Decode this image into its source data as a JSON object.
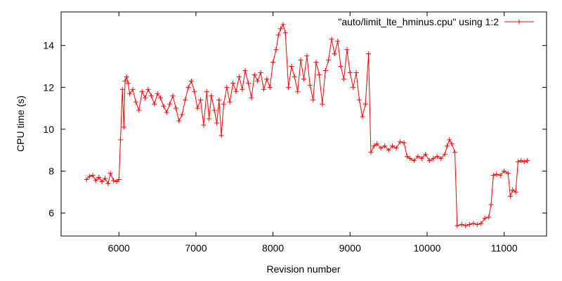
{
  "chart_data": {
    "type": "line",
    "title": "",
    "xlabel": "Revision number",
    "ylabel": "CPU time (s)",
    "xlim": [
      5250,
      11550
    ],
    "ylim": [
      4.9,
      15.6
    ],
    "xticks": [
      6000,
      7000,
      8000,
      9000,
      10000,
      11000
    ],
    "yticks": [
      6,
      8,
      10,
      12,
      14
    ],
    "legend_position": "top-right",
    "point_marker": "plus",
    "color": "#ff0000",
    "series": [
      {
        "name": "\"auto/limit_lte_hminus.cpu\" using 1:2",
        "points": [
          [
            5580,
            7.6
          ],
          [
            5620,
            7.75
          ],
          [
            5660,
            7.8
          ],
          [
            5700,
            7.55
          ],
          [
            5740,
            7.7
          ],
          [
            5780,
            7.5
          ],
          [
            5820,
            7.65
          ],
          [
            5860,
            7.4
          ],
          [
            5890,
            7.9
          ],
          [
            5930,
            7.55
          ],
          [
            5970,
            7.5
          ],
          [
            6000,
            7.6
          ],
          [
            6020,
            9.5
          ],
          [
            6045,
            11.9
          ],
          [
            6065,
            10.1
          ],
          [
            6080,
            12.3
          ],
          [
            6100,
            12.5
          ],
          [
            6120,
            12.2
          ],
          [
            6140,
            11.7
          ],
          [
            6180,
            11.9
          ],
          [
            6220,
            11.3
          ],
          [
            6260,
            10.9
          ],
          [
            6300,
            11.8
          ],
          [
            6340,
            11.5
          ],
          [
            6380,
            11.9
          ],
          [
            6420,
            11.6
          ],
          [
            6460,
            11.2
          ],
          [
            6500,
            11.7
          ],
          [
            6540,
            11.5
          ],
          [
            6580,
            11.1
          ],
          [
            6620,
            10.8
          ],
          [
            6660,
            11.2
          ],
          [
            6700,
            11.6
          ],
          [
            6740,
            11.0
          ],
          [
            6780,
            10.4
          ],
          [
            6820,
            10.7
          ],
          [
            6860,
            11.4
          ],
          [
            6900,
            12.0
          ],
          [
            6940,
            12.3
          ],
          [
            6980,
            11.8
          ],
          [
            7020,
            11.0
          ],
          [
            7060,
            11.4
          ],
          [
            7100,
            10.2
          ],
          [
            7140,
            11.8
          ],
          [
            7170,
            10.5
          ],
          [
            7200,
            11.6
          ],
          [
            7240,
            10.9
          ],
          [
            7270,
            10.3
          ],
          [
            7300,
            11.4
          ],
          [
            7330,
            9.7
          ],
          [
            7360,
            11.2
          ],
          [
            7400,
            12.0
          ],
          [
            7440,
            11.3
          ],
          [
            7480,
            12.2
          ],
          [
            7520,
            11.8
          ],
          [
            7560,
            12.5
          ],
          [
            7600,
            11.9
          ],
          [
            7640,
            12.8
          ],
          [
            7680,
            12.2
          ],
          [
            7720,
            11.5
          ],
          [
            7760,
            12.6
          ],
          [
            7800,
            12.3
          ],
          [
            7840,
            12.7
          ],
          [
            7880,
            11.9
          ],
          [
            7920,
            12.4
          ],
          [
            7960,
            12.0
          ],
          [
            8000,
            13.2
          ],
          [
            8040,
            13.8
          ],
          [
            8070,
            14.5
          ],
          [
            8100,
            14.8
          ],
          [
            8130,
            15.0
          ],
          [
            8160,
            14.6
          ],
          [
            8200,
            12.0
          ],
          [
            8240,
            13.0
          ],
          [
            8280,
            12.5
          ],
          [
            8320,
            11.8
          ],
          [
            8360,
            13.3
          ],
          [
            8400,
            12.4
          ],
          [
            8440,
            13.5
          ],
          [
            8480,
            12.1
          ],
          [
            8520,
            11.4
          ],
          [
            8560,
            13.2
          ],
          [
            8600,
            12.6
          ],
          [
            8640,
            11.2
          ],
          [
            8680,
            12.8
          ],
          [
            8720,
            13.3
          ],
          [
            8760,
            14.3
          ],
          [
            8800,
            13.6
          ],
          [
            8840,
            14.2
          ],
          [
            8880,
            13.0
          ],
          [
            8920,
            12.4
          ],
          [
            8960,
            13.8
          ],
          [
            9000,
            12.7
          ],
          [
            9040,
            12.0
          ],
          [
            9080,
            12.7
          ],
          [
            9120,
            11.4
          ],
          [
            9160,
            10.6
          ],
          [
            9200,
            11.2
          ],
          [
            9240,
            13.6
          ],
          [
            9270,
            8.9
          ],
          [
            9310,
            9.2
          ],
          [
            9350,
            9.3
          ],
          [
            9400,
            9.1
          ],
          [
            9450,
            9.2
          ],
          [
            9500,
            9.0
          ],
          [
            9550,
            9.2
          ],
          [
            9600,
            9.1
          ],
          [
            9650,
            9.4
          ],
          [
            9700,
            9.35
          ],
          [
            9740,
            8.7
          ],
          [
            9780,
            8.6
          ],
          [
            9830,
            8.5
          ],
          [
            9880,
            8.7
          ],
          [
            9930,
            8.6
          ],
          [
            9980,
            8.8
          ],
          [
            10030,
            8.5
          ],
          [
            10080,
            8.6
          ],
          [
            10130,
            8.7
          ],
          [
            10180,
            8.6
          ],
          [
            10230,
            8.8
          ],
          [
            10260,
            9.2
          ],
          [
            10290,
            9.5
          ],
          [
            10320,
            9.3
          ],
          [
            10360,
            8.9
          ],
          [
            10390,
            5.4
          ],
          [
            10450,
            5.45
          ],
          [
            10500,
            5.4
          ],
          [
            10550,
            5.45
          ],
          [
            10600,
            5.5
          ],
          [
            10650,
            5.45
          ],
          [
            10700,
            5.5
          ],
          [
            10750,
            5.75
          ],
          [
            10800,
            5.8
          ],
          [
            10830,
            6.4
          ],
          [
            10860,
            7.8
          ],
          [
            10900,
            7.85
          ],
          [
            10950,
            7.8
          ],
          [
            11000,
            8.0
          ],
          [
            11050,
            7.9
          ],
          [
            11080,
            6.8
          ],
          [
            11110,
            7.1
          ],
          [
            11150,
            7.0
          ],
          [
            11180,
            8.45
          ],
          [
            11220,
            8.5
          ],
          [
            11260,
            8.45
          ],
          [
            11300,
            8.5
          ]
        ]
      }
    ]
  }
}
